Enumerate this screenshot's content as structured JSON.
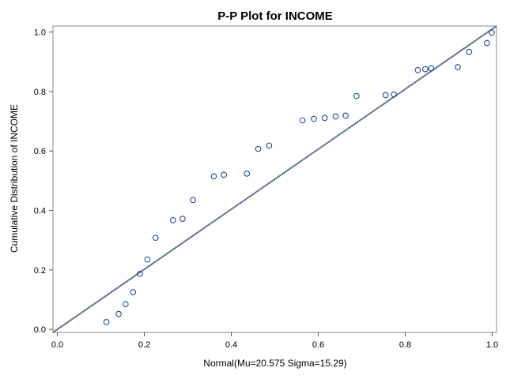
{
  "chart_data": {
    "type": "scatter",
    "title": "P-P Plot for INCOME",
    "xlabel": "Normal(Mu=20.575 Sigma=15.29)",
    "ylabel": "Cumulative Distribution of INCOME",
    "xlim": [
      -0.01,
      1.01
    ],
    "ylim": [
      -0.01,
      1.02
    ],
    "xticks": [
      0.0,
      0.2,
      0.4,
      0.6,
      0.8,
      1.0
    ],
    "yticks": [
      0.0,
      0.2,
      0.4,
      0.6,
      0.8,
      1.0
    ],
    "xtick_labels": [
      "0.0",
      "0.2",
      "0.4",
      "0.6",
      "0.8",
      "1.0"
    ],
    "ytick_labels": [
      "0.0",
      "0.2",
      "0.4",
      "0.6",
      "0.8",
      "1.0"
    ],
    "grid": false,
    "reference_line": {
      "from": [
        -0.01,
        -0.01
      ],
      "to": [
        1.01,
        1.02
      ],
      "color": "#667A93"
    },
    "marker_color": "#1F4E9A",
    "points": [
      {
        "x": 0.113,
        "y": 0.025
      },
      {
        "x": 0.141,
        "y": 0.052
      },
      {
        "x": 0.157,
        "y": 0.085
      },
      {
        "x": 0.174,
        "y": 0.125
      },
      {
        "x": 0.19,
        "y": 0.187
      },
      {
        "x": 0.207,
        "y": 0.235
      },
      {
        "x": 0.226,
        "y": 0.308
      },
      {
        "x": 0.266,
        "y": 0.367
      },
      {
        "x": 0.288,
        "y": 0.372
      },
      {
        "x": 0.312,
        "y": 0.435
      },
      {
        "x": 0.36,
        "y": 0.515
      },
      {
        "x": 0.383,
        "y": 0.52
      },
      {
        "x": 0.436,
        "y": 0.524
      },
      {
        "x": 0.462,
        "y": 0.607
      },
      {
        "x": 0.487,
        "y": 0.618
      },
      {
        "x": 0.564,
        "y": 0.703
      },
      {
        "x": 0.59,
        "y": 0.708
      },
      {
        "x": 0.615,
        "y": 0.711
      },
      {
        "x": 0.64,
        "y": 0.716
      },
      {
        "x": 0.663,
        "y": 0.719
      },
      {
        "x": 0.688,
        "y": 0.785
      },
      {
        "x": 0.755,
        "y": 0.788
      },
      {
        "x": 0.774,
        "y": 0.79
      },
      {
        "x": 0.829,
        "y": 0.872
      },
      {
        "x": 0.846,
        "y": 0.875
      },
      {
        "x": 0.86,
        "y": 0.878
      },
      {
        "x": 0.921,
        "y": 0.882
      },
      {
        "x": 0.947,
        "y": 0.933
      },
      {
        "x": 0.988,
        "y": 0.963
      },
      {
        "x": 0.999,
        "y": 0.998
      }
    ]
  }
}
